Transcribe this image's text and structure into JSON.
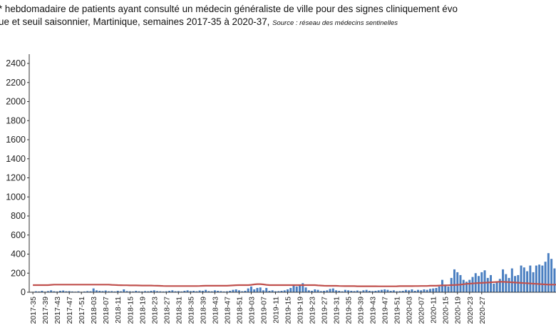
{
  "title": {
    "line1": "* hebdomadaire de patients ayant consulté un médecin généraliste de ville pour des signes cliniquement évo",
    "line2": "ue et seuil saisonnier, Martinique, semaines 2017-35 à 2020-37,",
    "source": "Source : réseau des médecins sentinelles"
  },
  "colors": {
    "bars": "#4a7fc1",
    "threshold": "#c0504d",
    "axis": "#333333"
  },
  "chart_data": {
    "type": "bar",
    "ylim": [
      0,
      2400
    ],
    "yticks": [
      0,
      200,
      400,
      600,
      800,
      1000,
      1200,
      1400,
      1600,
      1800,
      2000,
      2200,
      2400
    ],
    "ytick_labels": [
      "0",
      "200",
      "400",
      "600",
      "800",
      "1000",
      "1200",
      "1400",
      "1600",
      "1800",
      "2000",
      "2200",
      "2400"
    ],
    "start_week": "2017-35",
    "end_week": "2020-37",
    "xtick_labels": [
      "2017-35",
      "2017-39",
      "2017-43",
      "2017-47",
      "2017-51",
      "2018-03",
      "2018-07",
      "2018-11",
      "2018-15",
      "2018-19",
      "2018-23",
      "2018-27",
      "2018-31",
      "2018-35",
      "2018-39",
      "2018-43",
      "2018-47",
      "2018-51",
      "2019-03",
      "2019-07",
      "2019-11",
      "2019-15",
      "2019-19",
      "2019-23",
      "2019-27",
      "2019-31",
      "2019-35",
      "2019-39",
      "2019-43",
      "2019-47",
      "2019-51",
      "2020-03",
      "2020-07",
      "2020-11",
      "2020-15",
      "2020-19",
      "2020-23",
      "2020-27"
    ],
    "series": [
      {
        "type": "bar",
        "values": [
          5,
          10,
          8,
          15,
          6,
          12,
          20,
          10,
          8,
          15,
          18,
          10,
          12,
          8,
          6,
          10,
          5,
          8,
          12,
          10,
          40,
          20,
          15,
          12,
          18,
          10,
          12,
          8,
          15,
          10,
          30,
          12,
          10,
          8,
          15,
          10,
          8,
          12,
          10,
          15,
          20,
          12,
          10,
          8,
          10,
          15,
          20,
          10,
          12,
          8,
          15,
          20,
          12,
          15,
          10,
          18,
          15,
          25,
          12,
          10,
          20,
          15,
          12,
          8,
          10,
          15,
          25,
          30,
          20,
          10,
          15,
          40,
          60,
          30,
          45,
          50,
          20,
          45,
          15,
          20,
          10,
          12,
          15,
          20,
          30,
          45,
          80,
          60,
          70,
          95,
          50,
          20,
          15,
          30,
          25,
          12,
          15,
          20,
          35,
          40,
          20,
          15,
          10,
          25,
          20,
          15,
          12,
          18,
          10,
          20,
          25,
          15,
          12,
          15,
          20,
          25,
          30,
          25,
          15,
          20,
          10,
          12,
          15,
          25,
          20,
          30,
          15,
          25,
          20,
          30,
          25,
          35,
          40,
          45,
          60,
          130,
          80,
          60,
          150,
          240,
          210,
          180,
          130,
          110,
          130,
          160,
          200,
          170,
          210,
          230,
          150,
          180,
          90,
          110,
          140,
          240,
          190,
          150,
          250,
          170,
          180,
          280,
          260,
          220,
          280,
          210,
          280,
          290,
          280,
          320,
          410,
          350,
          250
        ]
      },
      {
        "type": "line",
        "values": [
          75,
          75,
          75,
          75,
          75,
          75,
          78,
          80,
          80,
          80,
          80,
          80,
          80,
          80,
          80,
          80,
          80,
          80,
          80,
          80,
          80,
          80,
          80,
          80,
          80,
          80,
          78,
          76,
          75,
          74,
          73,
          73,
          72,
          72,
          72,
          71,
          70,
          70,
          70,
          70,
          69,
          68,
          67,
          66,
          65,
          65,
          65,
          65,
          65,
          65,
          65,
          65,
          65,
          65,
          65,
          66,
          67,
          68,
          68,
          68,
          68,
          68,
          68,
          68,
          68,
          70,
          72,
          74,
          75,
          75,
          75,
          75,
          78,
          82,
          85,
          85,
          82,
          78,
          75,
          75,
          75,
          75,
          75,
          75,
          75,
          75,
          75,
          75,
          75,
          75,
          75,
          75,
          75,
          75,
          72,
          70,
          68,
          67,
          67,
          67,
          67,
          66,
          65,
          64,
          64,
          64,
          64,
          63,
          63,
          63,
          63,
          63,
          63,
          63,
          62,
          62,
          62,
          62,
          62,
          62,
          63,
          64,
          64,
          64,
          64,
          64,
          65,
          65,
          66,
          66,
          66,
          68,
          68,
          68,
          70,
          72,
          72,
          73,
          75,
          76,
          78,
          80,
          84,
          88,
          90,
          92,
          95,
          97,
          98,
          100,
          102,
          104,
          106,
          108,
          110,
          109,
          108,
          106,
          104,
          102,
          100,
          98,
          96,
          94,
          92,
          90,
          88,
          86,
          84,
          82,
          80,
          80,
          80,
          80,
          80
        ]
      }
    ]
  }
}
